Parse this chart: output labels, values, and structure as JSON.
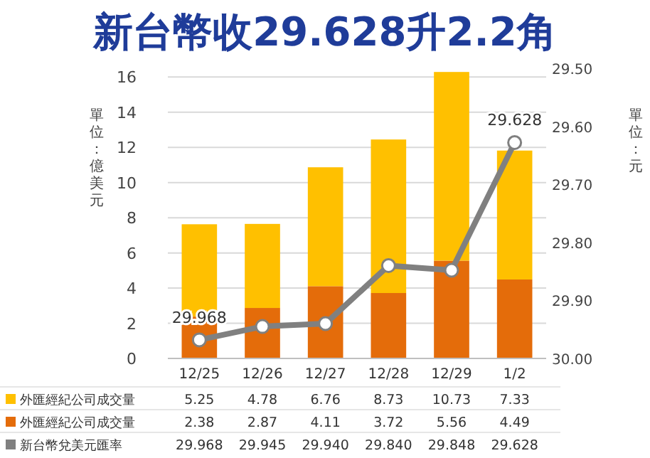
{
  "chart_data": {
    "type": "bar",
    "title": "新台幣收29.628升2.2角",
    "ylabel": "單位：億美元",
    "y2label": "單位：元",
    "categories": [
      "12/25",
      "12/26",
      "12/27",
      "12/28",
      "12/29",
      "1/2"
    ],
    "stacked": true,
    "series": [
      {
        "name": "外匯經紀公司成交量",
        "color": "#e46c0a",
        "values": [
          2.38,
          2.87,
          4.11,
          3.72,
          5.56,
          4.49
        ],
        "value_labels": [
          "2.38",
          "2.87",
          "4.11",
          "3.72",
          "5.56",
          "4.49"
        ]
      },
      {
        "name": "外匯經紀公司成交量",
        "color": "#ffc000",
        "values": [
          5.25,
          4.78,
          6.76,
          8.73,
          10.73,
          7.33
        ],
        "value_labels": [
          "5.25",
          "4.78",
          "6.76",
          "8.73",
          "10.73",
          "7.33"
        ]
      },
      {
        "name": "新台幣兌美元匯率",
        "type": "line",
        "axis": "y2",
        "color": "#808080",
        "values": [
          29.968,
          29.945,
          29.94,
          29.84,
          29.848,
          29.628
        ],
        "value_labels": [
          "29.968",
          "29.945",
          "29.940",
          "29.840",
          "29.848",
          "29.628"
        ]
      }
    ],
    "ylim": [
      0,
      16.5
    ],
    "yticks": [
      0,
      2,
      4,
      6,
      8,
      10,
      12,
      14,
      16
    ],
    "y2lim": [
      30.0,
      29.5
    ],
    "y2ticks": [
      {
        "value": 30.0,
        "label": "30.00"
      },
      {
        "value": 29.9,
        "label": "29.90"
      },
      {
        "value": 29.8,
        "label": "29.80"
      },
      {
        "value": 29.7,
        "label": "29.70"
      },
      {
        "value": 29.6,
        "label": "29.60"
      },
      {
        "value": 29.5,
        "label": "29.50"
      }
    ],
    "grid": "y",
    "legend": "bottom",
    "marker": "circle",
    "annotations": [
      "29.968",
      "29.628"
    ]
  }
}
